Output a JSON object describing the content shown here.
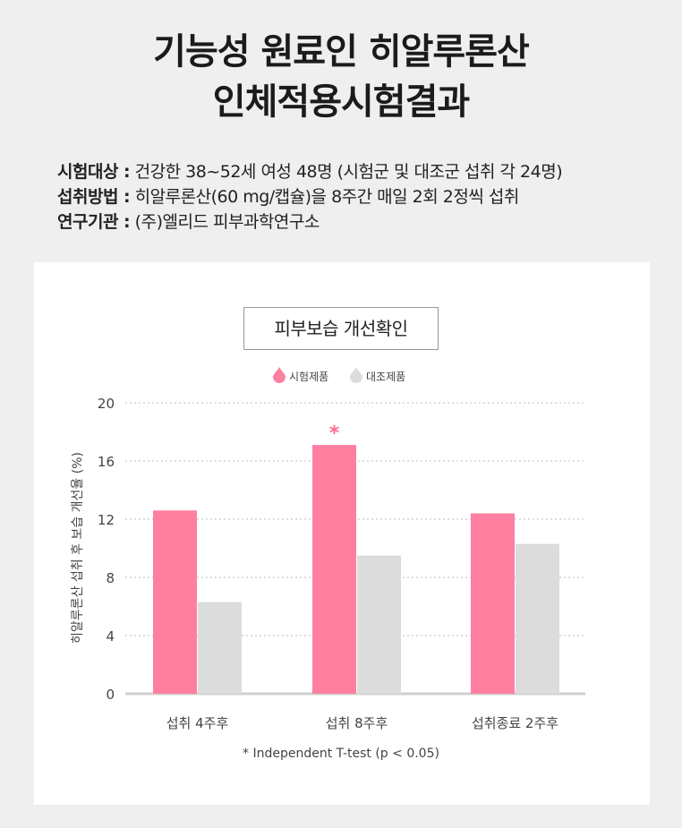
{
  "heading": {
    "line1": "기능성 원료인 히알루론산",
    "line2": "인체적용시험결과"
  },
  "study_info": [
    {
      "label": "시험대상 :",
      "value": " 건강한 38~52세 여성 48명 (시험군 및 대조군 섭취 각 24명)"
    },
    {
      "label": "섭취방법 :",
      "value": " 히알루론산(60 mg/캡슐)을 8주간 매일 2회 2정씩 섭취"
    },
    {
      "label": "연구기관 :",
      "value": " (주)엘리드 피부과학연구소"
    }
  ],
  "colors": {
    "test": "#ff7fa0",
    "control": "#dcdcdc",
    "asterisk": "#ff6f96"
  },
  "chart_data": {
    "type": "bar",
    "title": "피부보습 개선확인",
    "ylabel": "히알루론산 섭취 후 보습 개선율 (%)",
    "xlabel": "",
    "ylim": [
      0,
      20
    ],
    "yticks": [
      0,
      4,
      8,
      12,
      16,
      20
    ],
    "grid": true,
    "legend_position": "top-center",
    "categories": [
      "섭취 4주후",
      "섭취 8주후",
      "섭취종료 2주후"
    ],
    "series": [
      {
        "name": "시험제품",
        "values": [
          12.6,
          17.1,
          12.4
        ]
      },
      {
        "name": "대조제품",
        "values": [
          6.3,
          9.5,
          10.3
        ]
      }
    ],
    "annotations": [
      {
        "category_index": 1,
        "series_index": 0,
        "text": "*"
      }
    ],
    "footnote": "* Independent T-test (p < 0.05)"
  }
}
